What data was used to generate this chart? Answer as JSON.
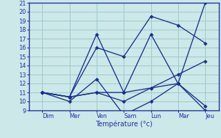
{
  "title": "",
  "xlabel": "Température (°c)",
  "ylabel": "",
  "background_color": "#cce8e8",
  "grid_color": "#9ec8c8",
  "line_color": "#1a3090",
  "ylim": [
    9,
    21
  ],
  "yticks": [
    9,
    10,
    11,
    12,
    13,
    14,
    15,
    16,
    17,
    18,
    19,
    20,
    21
  ],
  "x_labels": [
    "Dim",
    "Mer",
    "Ven",
    "Sam",
    "Lun",
    "Mar",
    "Jeu"
  ],
  "x_positions": [
    0,
    1,
    2,
    3,
    4,
    5,
    6
  ],
  "series": [
    [
      11,
      10,
      12.5,
      8.5,
      10,
      12,
      9.5
    ],
    [
      11,
      10.5,
      17.5,
      11,
      17.5,
      12,
      21
    ],
    [
      11,
      10.5,
      16,
      15,
      19.5,
      18.5,
      16.5
    ],
    [
      11,
      10.5,
      11,
      11,
      11.5,
      13,
      14.5
    ],
    [
      11,
      10.5,
      11,
      10,
      11.5,
      12,
      9
    ]
  ],
  "font_size_tick": 6,
  "font_size_label": 7,
  "linewidth": 1.0,
  "markersize": 2.5
}
